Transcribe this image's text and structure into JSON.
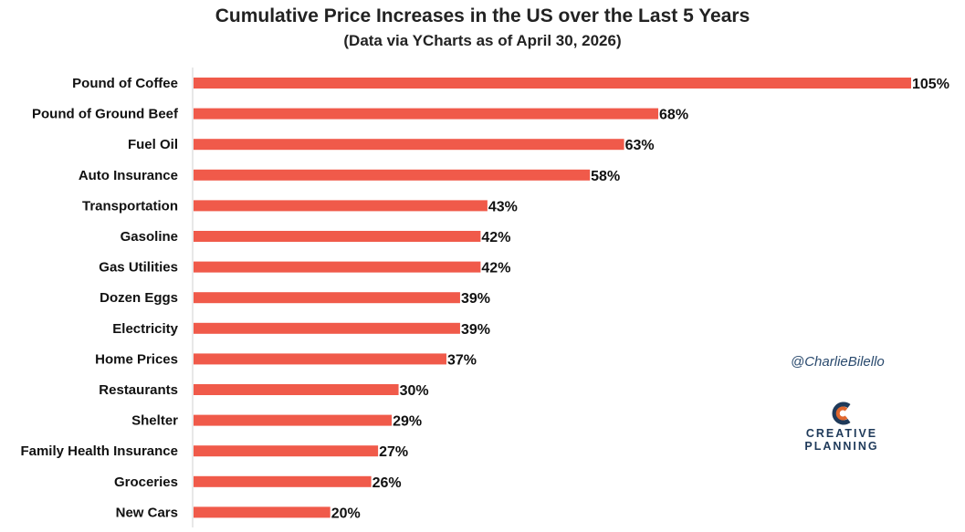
{
  "chart_data": {
    "type": "bar",
    "orientation": "horizontal",
    "title": "Cumulative Price Increases in the US over the Last 5 Years",
    "subtitle": "(Data via YCharts as of April 30, 2026)",
    "categories": [
      "Pound of Coffee",
      "Pound of Ground Beef",
      "Fuel Oil",
      "Auto Insurance",
      "Transportation",
      "Gasoline",
      "Gas Utilities",
      "Dozen Eggs",
      "Electricity",
      "Home Prices",
      "Restaurants",
      "Shelter",
      "Family Health Insurance",
      "Groceries",
      "New Cars"
    ],
    "values": [
      105,
      68,
      63,
      58,
      43,
      42,
      42,
      39,
      39,
      37,
      30,
      29,
      27,
      26,
      20
    ],
    "value_labels": [
      "105%",
      "68%",
      "63%",
      "58%",
      "43%",
      "42%",
      "42%",
      "39%",
      "39%",
      "37%",
      "30%",
      "29%",
      "27%",
      "26%",
      "20%"
    ],
    "unit": "%",
    "bar_color": "#f05a4a",
    "xlim": [
      0,
      105
    ],
    "grid": false
  },
  "watermark": {
    "handle": "@CharlieBilello",
    "logo_line1": "CREATIVE",
    "logo_line2": "PLANNING"
  },
  "colors": {
    "bar": "#f05a4a",
    "logo_orange": "#e0672e",
    "logo_navy": "#1f3a5a"
  }
}
